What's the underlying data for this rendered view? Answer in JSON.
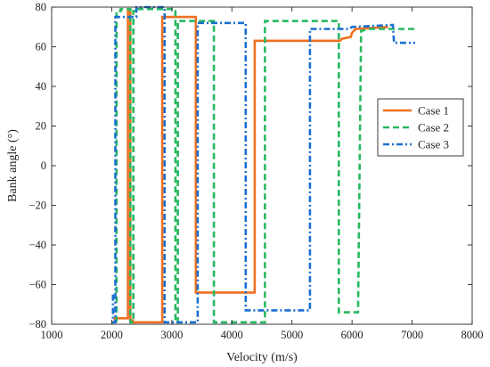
{
  "chart_data": {
    "type": "line",
    "title": "",
    "xlabel": "Velocity (m/s)",
    "ylabel": "Bank angle (°)",
    "xlim": [
      1000,
      8000
    ],
    "ylim": [
      -80,
      80
    ],
    "xticks": [
      1000,
      2000,
      3000,
      4000,
      5000,
      6000,
      7000,
      8000
    ],
    "yticks": [
      -80,
      -60,
      -40,
      -20,
      0,
      20,
      40,
      60,
      80
    ],
    "grid": false,
    "legend_position": "right",
    "series": [
      {
        "name": "Case 1",
        "color": "#f07020",
        "dash": "solid",
        "x": [
          2050,
          2050,
          2270,
          2270,
          2310,
          2310,
          2350,
          2350,
          2840,
          2840,
          3400,
          3400,
          4380,
          4380,
          5800,
          5830,
          5980,
          6000,
          6060,
          6600
        ],
        "y": [
          -79,
          -77,
          -77,
          78,
          78,
          -78,
          -78,
          -79,
          -79,
          75,
          75,
          -64,
          -64,
          63,
          63,
          64,
          65,
          67,
          69,
          70
        ]
      },
      {
        "name": "Case 2",
        "color": "#28b860",
        "dash": "dashed",
        "x": [
          2080,
          2080,
          2150,
          2150,
          2310,
          2310,
          2360,
          2360,
          2440,
          2440,
          3060,
          3060,
          3100,
          3100,
          3700,
          3700,
          4550,
          4550,
          5780,
          5780,
          6100,
          6150,
          6300,
          7050
        ],
        "y": [
          -79,
          78,
          78,
          79,
          79,
          -79,
          -79,
          78,
          78,
          79,
          79,
          -79,
          -79,
          73,
          73,
          -79,
          -79,
          73,
          73,
          -74,
          -74,
          68,
          69,
          69
        ]
      },
      {
        "name": "Case 3",
        "color": "#1a6fd0",
        "dash": "dashdot",
        "x": [
          2020,
          2020,
          2060,
          2060,
          2410,
          2410,
          2880,
          2880,
          3430,
          3430,
          4230,
          4230,
          5300,
          5300,
          5950,
          6000,
          6680,
          6700,
          6780,
          7050
        ],
        "y": [
          -65,
          -79,
          -79,
          75,
          75,
          80,
          80,
          -79,
          -79,
          72,
          72,
          -73,
          -73,
          69,
          69,
          70,
          71,
          62,
          62,
          62
        ]
      }
    ]
  }
}
